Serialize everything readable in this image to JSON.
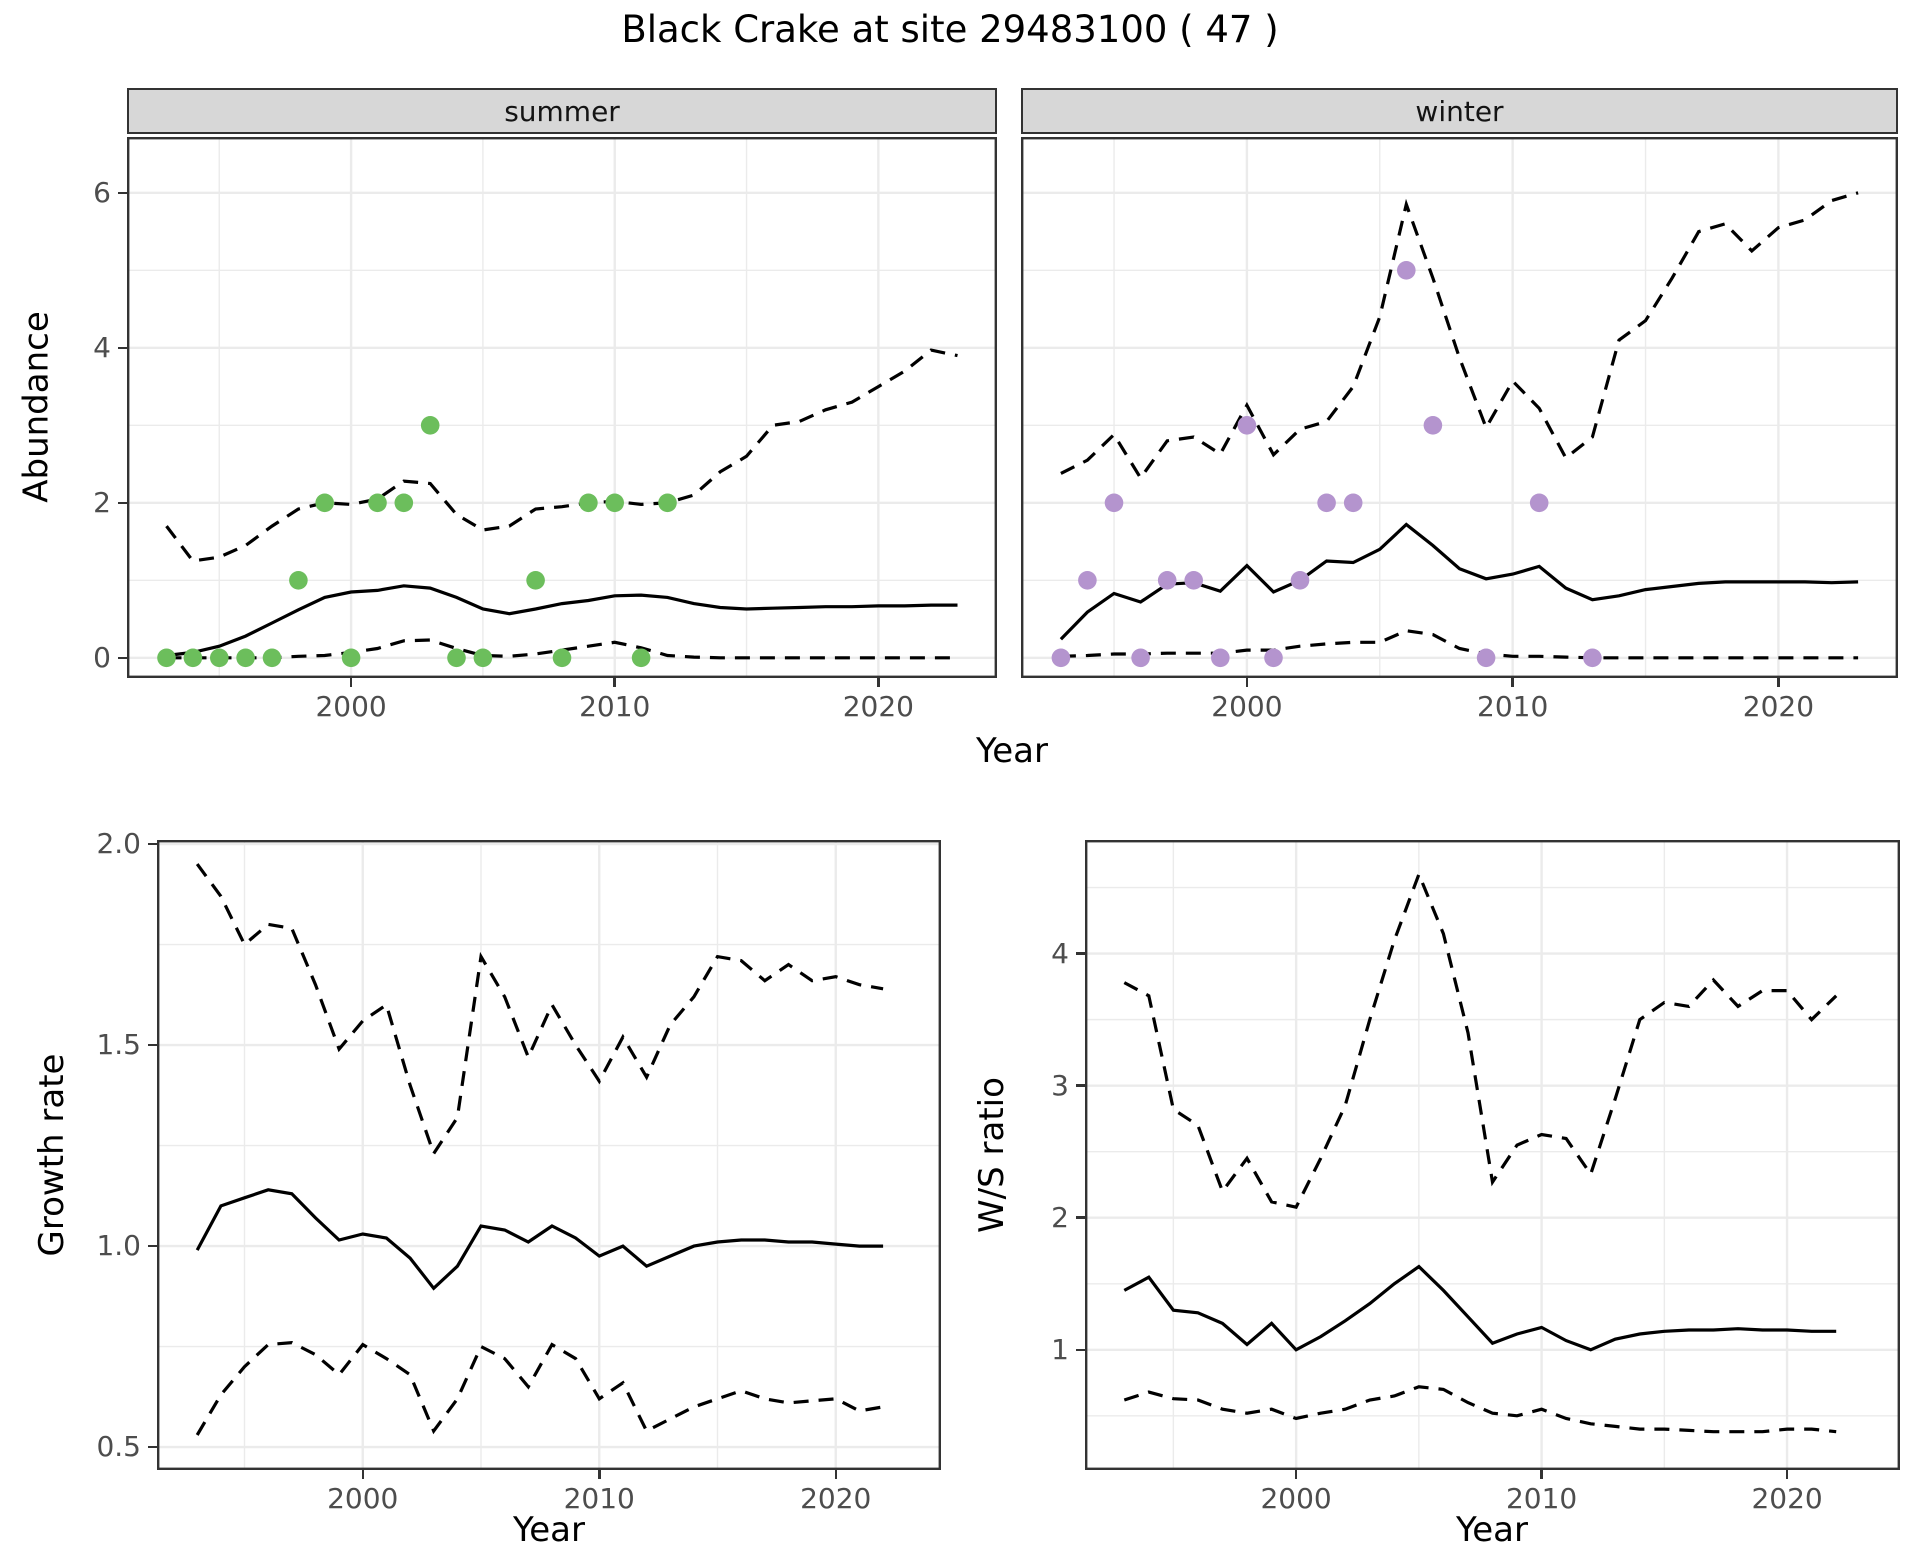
{
  "title": "Black Crake at site 29483100 ( 47 )",
  "colors": {
    "summer_points": "#6cbe5c",
    "winter_points": "#b494ce",
    "line": "#000000",
    "grid": "#ebebeb",
    "strip_fill": "#d7d7d7",
    "axis_text": "#4d4d4d",
    "panel_border": "#333333"
  },
  "chart_data": [
    {
      "id": "abundance",
      "type": "line",
      "xlabel": "Year",
      "ylabel": "Abundance",
      "xlim": [
        1991.5,
        2024.5
      ],
      "ylim": [
        -0.26,
        6.72
      ],
      "xticks": [
        2000,
        2010,
        2020
      ],
      "xtick_labels": [
        "2000",
        "2010",
        "2020"
      ],
      "xminor": [
        1995,
        2005,
        2015
      ],
      "yticks": [
        0,
        2,
        4,
        6
      ],
      "ytick_labels": [
        "0",
        "2",
        "4",
        "6"
      ],
      "yminor": [
        1,
        3,
        5
      ],
      "grid": true,
      "legend": "none",
      "years": [
        1993,
        1994,
        1995,
        1996,
        1997,
        1998,
        1999,
        2000,
        2001,
        2002,
        2003,
        2004,
        2005,
        2006,
        2007,
        2008,
        2009,
        2010,
        2011,
        2012,
        2013,
        2014,
        2015,
        2016,
        2017,
        2018,
        2019,
        2020,
        2021,
        2022,
        2023
      ],
      "facets": [
        {
          "label": "summer",
          "point_color": "#6cbe5c",
          "median": [
            0.03,
            0.07,
            0.15,
            0.28,
            0.45,
            0.62,
            0.78,
            0.85,
            0.87,
            0.93,
            0.9,
            0.78,
            0.63,
            0.57,
            0.63,
            0.7,
            0.74,
            0.8,
            0.81,
            0.78,
            0.7,
            0.65,
            0.63,
            0.64,
            0.65,
            0.66,
            0.66,
            0.67,
            0.67,
            0.68,
            0.68
          ],
          "upper_ci": [
            1.7,
            1.25,
            1.3,
            1.45,
            1.7,
            1.92,
            2.0,
            1.98,
            2.05,
            2.28,
            2.25,
            1.85,
            1.65,
            1.7,
            1.92,
            1.95,
            2.0,
            2.02,
            1.98,
            2.0,
            2.1,
            2.4,
            2.6,
            3.0,
            3.05,
            3.2,
            3.3,
            3.5,
            3.7,
            3.97,
            3.9
          ],
          "lower_ci": [
            0.0,
            0.0,
            0.0,
            0.0,
            0.0,
            0.02,
            0.03,
            0.07,
            0.12,
            0.22,
            0.23,
            0.12,
            0.03,
            0.02,
            0.05,
            0.1,
            0.15,
            0.2,
            0.13,
            0.03,
            0.01,
            0.0,
            0.0,
            0.0,
            0.0,
            0.0,
            0.0,
            0.0,
            0.0,
            0.0,
            0.0
          ],
          "observations": [
            [
              1993,
              0
            ],
            [
              1994,
              0
            ],
            [
              1995,
              0
            ],
            [
              1996,
              0
            ],
            [
              1997,
              0
            ],
            [
              1998,
              1
            ],
            [
              1999,
              2
            ],
            [
              2000,
              0
            ],
            [
              2001,
              2
            ],
            [
              2002,
              2
            ],
            [
              2003,
              3
            ],
            [
              2004,
              0
            ],
            [
              2005,
              0
            ],
            [
              2007,
              1
            ],
            [
              2008,
              0
            ],
            [
              2009,
              2
            ],
            [
              2010,
              2
            ],
            [
              2011,
              0
            ],
            [
              2012,
              2
            ]
          ]
        },
        {
          "label": "winter",
          "point_color": "#b494ce",
          "median": [
            0.24,
            0.59,
            0.83,
            0.72,
            0.95,
            0.97,
            0.86,
            1.19,
            0.85,
            1.0,
            1.25,
            1.23,
            1.4,
            1.72,
            1.45,
            1.15,
            1.02,
            1.08,
            1.18,
            0.9,
            0.75,
            0.8,
            0.88,
            0.92,
            0.96,
            0.98,
            0.98,
            0.98,
            0.98,
            0.97,
            0.98
          ],
          "upper_ci": [
            2.38,
            2.55,
            2.88,
            2.32,
            2.8,
            2.85,
            2.63,
            3.26,
            2.62,
            2.95,
            3.05,
            3.5,
            4.4,
            5.85,
            4.9,
            3.87,
            2.97,
            3.57,
            3.22,
            2.58,
            2.85,
            4.1,
            4.35,
            4.9,
            5.5,
            5.6,
            5.25,
            5.55,
            5.65,
            5.9,
            6.0
          ],
          "lower_ci": [
            0.02,
            0.03,
            0.05,
            0.05,
            0.06,
            0.06,
            0.06,
            0.1,
            0.1,
            0.15,
            0.18,
            0.2,
            0.2,
            0.35,
            0.3,
            0.12,
            0.05,
            0.02,
            0.02,
            0.01,
            0.0,
            0.0,
            0.0,
            0.0,
            0.0,
            0.0,
            0.0,
            0.0,
            0.0,
            0.0,
            0.0
          ],
          "observations": [
            [
              1993,
              0
            ],
            [
              1994,
              1
            ],
            [
              1995,
              2
            ],
            [
              1996,
              0
            ],
            [
              1997,
              1
            ],
            [
              1998,
              1
            ],
            [
              1999,
              0
            ],
            [
              2000,
              3
            ],
            [
              2001,
              0
            ],
            [
              2002,
              1
            ],
            [
              2003,
              2
            ],
            [
              2004,
              2
            ],
            [
              2006,
              5
            ],
            [
              2007,
              3
            ],
            [
              2009,
              0
            ],
            [
              2011,
              2
            ],
            [
              2013,
              0
            ]
          ]
        }
      ]
    },
    {
      "id": "growth_rate",
      "type": "line",
      "xlabel": "Year",
      "ylabel": "Growth rate",
      "xlim": [
        1991.3,
        2024.45
      ],
      "ylim": [
        0.443,
        2.01
      ],
      "xticks": [
        2000,
        2010,
        2020
      ],
      "xtick_labels": [
        "2000",
        "2010",
        "2020"
      ],
      "xminor": [
        1995,
        2005,
        2015
      ],
      "yticks": [
        0.5,
        1.0,
        1.5,
        2.0
      ],
      "ytick_labels": [
        "0.5",
        "1.0",
        "1.5",
        "2.0"
      ],
      "yminor": [
        0.75,
        1.25,
        1.75
      ],
      "grid": true,
      "legend": "none",
      "years": [
        1993,
        1994,
        1995,
        1996,
        1997,
        1998,
        1999,
        2000,
        2001,
        2002,
        2003,
        2004,
        2005,
        2006,
        2007,
        2008,
        2009,
        2010,
        2011,
        2012,
        2013,
        2014,
        2015,
        2016,
        2017,
        2018,
        2019,
        2020,
        2021,
        2022
      ],
      "series": [
        {
          "name": "upper_ci",
          "style": "dashed",
          "values": [
            1.95,
            1.87,
            1.75,
            1.8,
            1.79,
            1.65,
            1.49,
            1.56,
            1.6,
            1.4,
            1.23,
            1.32,
            1.72,
            1.62,
            1.47,
            1.6,
            1.5,
            1.41,
            1.52,
            1.42,
            1.55,
            1.62,
            1.72,
            1.71,
            1.66,
            1.7,
            1.66,
            1.67,
            1.65,
            1.64
          ]
        },
        {
          "name": "lower_ci",
          "style": "dashed",
          "values": [
            0.53,
            0.63,
            0.7,
            0.755,
            0.76,
            0.73,
            0.68,
            0.755,
            0.72,
            0.68,
            0.54,
            0.62,
            0.75,
            0.72,
            0.65,
            0.755,
            0.72,
            0.62,
            0.66,
            0.54,
            0.57,
            0.6,
            0.62,
            0.64,
            0.62,
            0.61,
            0.615,
            0.62,
            0.59,
            0.6
          ]
        },
        {
          "name": "median",
          "style": "solid",
          "values": [
            0.99,
            1.1,
            1.12,
            1.14,
            1.13,
            1.07,
            1.015,
            1.03,
            1.02,
            0.97,
            0.895,
            0.95,
            1.05,
            1.04,
            1.01,
            1.05,
            1.02,
            0.975,
            1.0,
            0.95,
            0.975,
            1.0,
            1.01,
            1.015,
            1.015,
            1.01,
            1.01,
            1.005,
            1.0,
            1.0
          ]
        }
      ]
    },
    {
      "id": "ws_ratio",
      "type": "line",
      "xlabel": "Year",
      "ylabel": "W/S ratio",
      "xlim": [
        1991.4,
        2024.6
      ],
      "ylim": [
        0.09,
        4.86
      ],
      "xticks": [
        2000,
        2010,
        2020
      ],
      "xtick_labels": [
        "2000",
        "2010",
        "2020"
      ],
      "xminor": [
        1995,
        2005,
        2015
      ],
      "yticks": [
        1,
        2,
        3,
        4
      ],
      "ytick_labels": [
        "1",
        "2",
        "3",
        "4"
      ],
      "yminor": [
        0.5,
        1.5,
        2.5,
        3.5,
        4.5
      ],
      "grid": true,
      "legend": "none",
      "years": [
        1993,
        1994,
        1995,
        1996,
        1997,
        1998,
        1999,
        2000,
        2001,
        2002,
        2003,
        2004,
        2005,
        2006,
        2007,
        2008,
        2009,
        2010,
        2011,
        2012,
        2013,
        2014,
        2015,
        2016,
        2017,
        2018,
        2019,
        2020,
        2021,
        2022
      ],
      "series": [
        {
          "name": "upper_ci",
          "style": "dashed",
          "values": [
            3.78,
            3.68,
            2.82,
            2.7,
            2.2,
            2.45,
            2.12,
            2.08,
            2.45,
            2.85,
            3.5,
            4.1,
            4.6,
            4.15,
            3.4,
            2.27,
            2.55,
            2.63,
            2.6,
            2.33,
            2.9,
            3.5,
            3.63,
            3.6,
            3.8,
            3.6,
            3.72,
            3.72,
            3.5,
            3.68
          ]
        },
        {
          "name": "lower_ci",
          "style": "dashed",
          "values": [
            0.62,
            0.68,
            0.63,
            0.62,
            0.55,
            0.52,
            0.55,
            0.48,
            0.52,
            0.55,
            0.62,
            0.65,
            0.72,
            0.7,
            0.6,
            0.52,
            0.5,
            0.55,
            0.48,
            0.44,
            0.42,
            0.4,
            0.4,
            0.39,
            0.38,
            0.38,
            0.38,
            0.4,
            0.4,
            0.38
          ]
        },
        {
          "name": "median",
          "style": "solid",
          "values": [
            1.45,
            1.55,
            1.3,
            1.28,
            1.2,
            1.04,
            1.2,
            1.0,
            1.1,
            1.22,
            1.35,
            1.5,
            1.63,
            1.45,
            1.25,
            1.05,
            1.12,
            1.17,
            1.07,
            1.0,
            1.08,
            1.12,
            1.14,
            1.15,
            1.15,
            1.16,
            1.15,
            1.15,
            1.14,
            1.14
          ]
        }
      ]
    }
  ]
}
